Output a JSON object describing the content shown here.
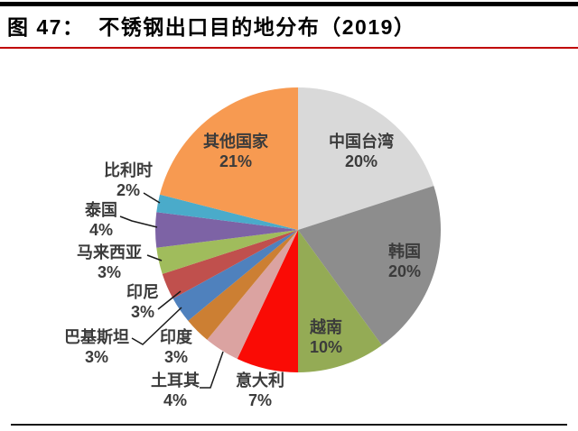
{
  "figure": {
    "title": "图 47：  不锈钢出口目的地分布（2019）",
    "accent_rule_color": "#c00000",
    "top_rule_color": "#000000",
    "bottom_rule_color": "#161616"
  },
  "chart_data": {
    "type": "pie",
    "title": "不锈钢出口目的地分布（2019）",
    "unit": "%",
    "total": 100,
    "start_angle_deg": 0,
    "direction": "clockwise",
    "legend": "none",
    "slices": [
      {
        "id": "taiwan",
        "name": "中国台湾",
        "value": 20,
        "value_label": "20%",
        "color": "#d9d9d9",
        "label_placement": "inside"
      },
      {
        "id": "korea",
        "name": "韩国",
        "value": 20,
        "value_label": "20%",
        "color": "#8d8d8d",
        "label_placement": "inside"
      },
      {
        "id": "vietnam",
        "name": "越南",
        "value": 10,
        "value_label": "10%",
        "color": "#94ab55",
        "label_placement": "inside"
      },
      {
        "id": "italy",
        "name": "意大利",
        "value": 7,
        "value_label": "7%",
        "color": "#fa0b05",
        "label_placement": "outside"
      },
      {
        "id": "turkey",
        "name": "土耳其",
        "value": 4,
        "value_label": "4%",
        "color": "#dba3a1",
        "label_placement": "outside"
      },
      {
        "id": "india",
        "name": "印度",
        "value": 3,
        "value_label": "3%",
        "color": "#cc7f33",
        "label_placement": "outside"
      },
      {
        "id": "pakistan",
        "name": "巴基斯坦",
        "value": 3,
        "value_label": "3%",
        "color": "#4f81bd",
        "label_placement": "outside"
      },
      {
        "id": "indonesia",
        "name": "印尼",
        "value": 3,
        "value_label": "3%",
        "color": "#c0504d",
        "label_placement": "outside"
      },
      {
        "id": "malaysia",
        "name": "马来西亚",
        "value": 3,
        "value_label": "3%",
        "color": "#a0bc5c",
        "label_placement": "outside"
      },
      {
        "id": "thailand",
        "name": "泰国",
        "value": 4,
        "value_label": "4%",
        "color": "#7d63a5",
        "label_placement": "outside"
      },
      {
        "id": "belgium",
        "name": "比利时",
        "value": 2,
        "value_label": "2%",
        "color": "#4aabca",
        "label_placement": "outside"
      },
      {
        "id": "others",
        "name": "其他国家",
        "value": 21,
        "value_label": "21%",
        "color": "#f79a51",
        "label_placement": "inside"
      }
    ]
  }
}
